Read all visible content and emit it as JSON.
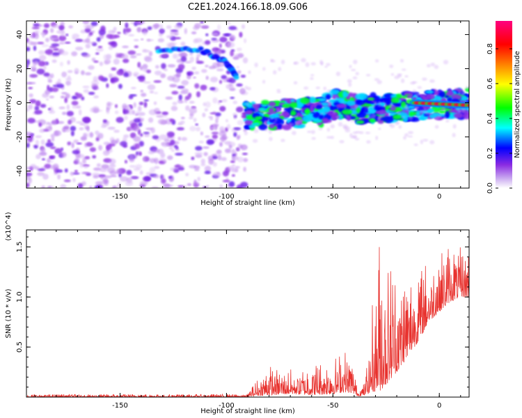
{
  "figure": {
    "title": "C2E1.2024.166.18.09.G06"
  },
  "chart_data": [
    {
      "type": "heatmap",
      "xlabel": "Height of straight line (km)",
      "ylabel": "Frequency (Hz)",
      "xlim": [
        -194,
        14
      ],
      "ylim": [
        -50,
        48
      ],
      "x_ticks": [
        -150,
        -100,
        -50,
        0
      ],
      "y_ticks": [
        -40,
        -20,
        0,
        20,
        40
      ],
      "colorbar": {
        "label": "Normalized spectral amplitude",
        "range": [
          0,
          0.96
        ],
        "ticks": [
          0.0,
          0.2,
          0.4,
          0.6,
          0.8
        ],
        "colormap": [
          "#ffffff",
          "#8a2be2",
          "#0000ff",
          "#00ffff",
          "#00ff00",
          "#ffff00",
          "#ff8000",
          "#ff0000",
          "#ff0080"
        ]
      },
      "regions": [
        {
          "name": "noise",
          "x_range": [
            -194,
            -91
          ],
          "f_range": [
            -50,
            48
          ],
          "typical_amplitude": 0.05
        },
        {
          "name": "band",
          "x_range": [
            -91,
            14
          ],
          "center_freq_start": -8,
          "center_freq_end": 0,
          "width_hz": 12,
          "typical_amplitude": 0.3
        }
      ],
      "features": [
        {
          "name": "upper track",
          "x": [
            -132,
            -112,
            -100,
            -95
          ],
          "f": [
            31,
            31,
            24,
            14
          ]
        },
        {
          "name": "strong line",
          "x": [
            -12,
            14
          ],
          "f": [
            0,
            -1.5
          ],
          "amplitude": 0.9
        }
      ]
    },
    {
      "type": "line",
      "xlabel": "Height of straight line (km)",
      "ylabel": "SNR (10 * v/v)",
      "y_multiplier": "(x10^4)",
      "xlim": [
        -194,
        14
      ],
      "ylim": [
        0,
        1.67
      ],
      "x_ticks": [
        -150,
        -100,
        -50,
        0
      ],
      "y_ticks": [
        0.5,
        1.0,
        1.5
      ],
      "color": "#e8322e",
      "envelope": {
        "x": [
          -194,
          -90,
          -88,
          -80,
          -70,
          -60,
          -50,
          -45,
          -41,
          -38,
          -35,
          -30,
          -28,
          -25,
          -22,
          -18,
          -15,
          -10,
          -5,
          0,
          5,
          10,
          14
        ],
        "y_low": [
          0.0,
          0.0,
          0.01,
          0.02,
          0.03,
          0.02,
          0.03,
          0.05,
          0.04,
          0.01,
          0.02,
          0.06,
          0.06,
          0.12,
          0.2,
          0.3,
          0.4,
          0.55,
          0.75,
          0.85,
          0.95,
          1.0,
          1.0
        ],
        "y_high": [
          0.03,
          0.03,
          0.12,
          0.32,
          0.28,
          0.35,
          0.38,
          0.5,
          0.38,
          0.08,
          0.15,
          1.3,
          1.67,
          1.4,
          1.4,
          1.3,
          1.25,
          1.4,
          1.35,
          1.45,
          1.55,
          1.5,
          1.5
        ]
      }
    }
  ]
}
